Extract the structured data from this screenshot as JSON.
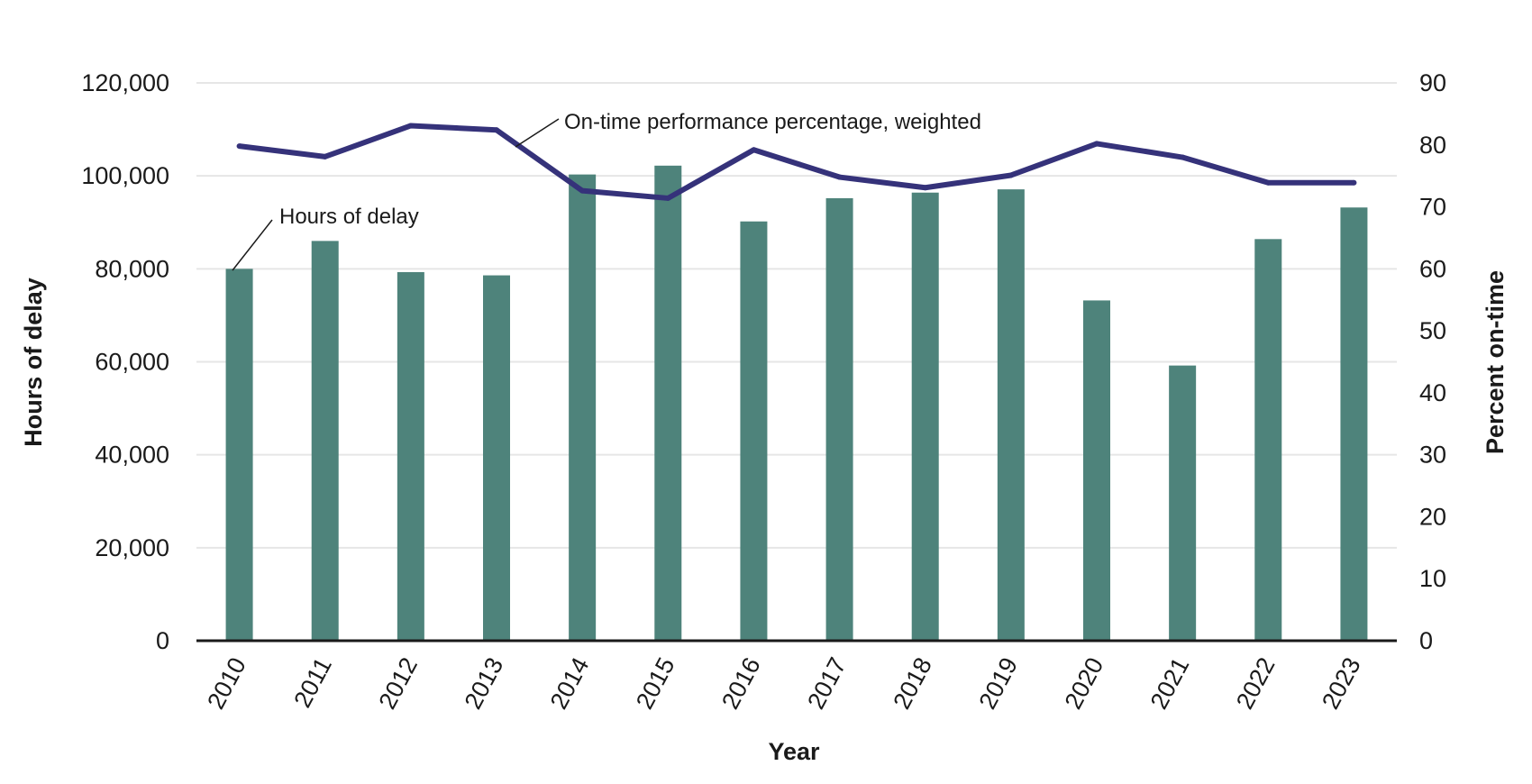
{
  "chart_data": {
    "type": "bar",
    "categories": [
      "2010",
      "2011",
      "2012",
      "2013",
      "2014",
      "2015",
      "2016",
      "2017",
      "2018",
      "2019",
      "2020",
      "2021",
      "2022",
      "2023"
    ],
    "series": [
      {
        "name": "Hours of delay",
        "type": "bar",
        "axis": "left",
        "color": "#4e837b",
        "values": [
          80000,
          86000,
          79300,
          78600,
          100300,
          102200,
          90200,
          95200,
          96400,
          97100,
          73200,
          59200,
          86400,
          93200
        ]
      },
      {
        "name": "On-time performance percentage, weighted",
        "type": "line",
        "axis": "right",
        "color": "#35327a",
        "values": [
          79.8,
          78.1,
          83.1,
          82.4,
          72.6,
          71.4,
          79.2,
          74.8,
          73.1,
          75.1,
          80.2,
          78.0,
          73.9,
          73.9
        ]
      }
    ],
    "xlabel": "Year",
    "ylabel": "Hours of delay",
    "y2label": "Percent on-time",
    "ylim": [
      0,
      120000
    ],
    "y2lim": [
      0,
      90
    ],
    "yticks": [
      "0",
      "20,000",
      "40,000",
      "60,000",
      "80,000",
      "100,000",
      "120,000"
    ],
    "y2ticks": [
      "0",
      "10",
      "20",
      "30",
      "40",
      "50",
      "60",
      "70",
      "80",
      "90"
    ],
    "grid": true,
    "annotations": [
      "Hours of delay",
      "On-time performance percentage, weighted"
    ]
  }
}
